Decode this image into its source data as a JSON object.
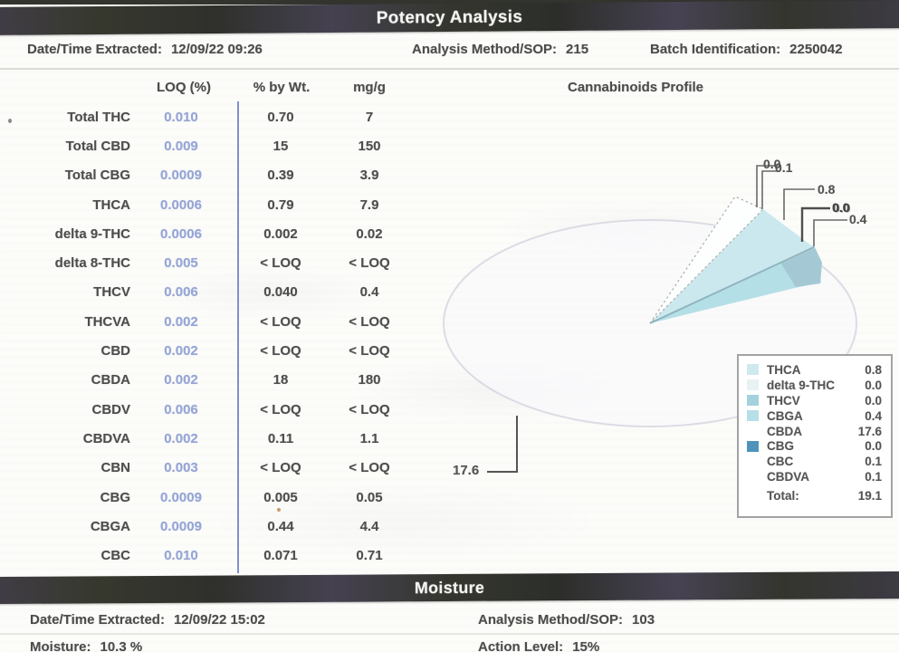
{
  "potency": {
    "title": "Potency Analysis",
    "extracted_label": "Date/Time Extracted:",
    "extracted_value": "12/09/22  09:26",
    "method_label": "Analysis Method/SOP:",
    "method_value": "215",
    "batch_label": "Batch Identification:",
    "batch_value": "2250042",
    "columns": {
      "loq": "LOQ (%)",
      "wt": "% by Wt.",
      "mgg": "mg/g"
    },
    "rows": [
      {
        "analyte": "Total THC",
        "loq": "0.010",
        "wt": "0.70",
        "mgg": "7"
      },
      {
        "analyte": "Total CBD",
        "loq": "0.009",
        "wt": "15",
        "mgg": "150"
      },
      {
        "analyte": "Total CBG",
        "loq": "0.0009",
        "wt": "0.39",
        "mgg": "3.9"
      },
      {
        "analyte": "THCA",
        "loq": "0.0006",
        "wt": "0.79",
        "mgg": "7.9"
      },
      {
        "analyte": "delta 9-THC",
        "loq": "0.0006",
        "wt": "0.002",
        "mgg": "0.02"
      },
      {
        "analyte": "delta 8-THC",
        "loq": "0.005",
        "wt": "< LOQ",
        "mgg": "< LOQ"
      },
      {
        "analyte": "THCV",
        "loq": "0.006",
        "wt": "0.040",
        "mgg": "0.4"
      },
      {
        "analyte": "THCVA",
        "loq": "0.002",
        "wt": "< LOQ",
        "mgg": "< LOQ"
      },
      {
        "analyte": "CBD",
        "loq": "0.002",
        "wt": "< LOQ",
        "mgg": "< LOQ"
      },
      {
        "analyte": "CBDA",
        "loq": "0.002",
        "wt": "18",
        "mgg": "180"
      },
      {
        "analyte": "CBDV",
        "loq": "0.006",
        "wt": "< LOQ",
        "mgg": "< LOQ"
      },
      {
        "analyte": "CBDVA",
        "loq": "0.002",
        "wt": "0.11",
        "mgg": "1.1"
      },
      {
        "analyte": "CBN",
        "loq": "0.003",
        "wt": "< LOQ",
        "mgg": "< LOQ"
      },
      {
        "analyte": "CBG",
        "loq": "0.0009",
        "wt": "0.005",
        "mgg": "0.05"
      },
      {
        "analyte": "CBGA",
        "loq": "0.0009",
        "wt": "0.44",
        "mgg": "4.4"
      },
      {
        "analyte": "CBC",
        "loq": "0.010",
        "wt": "0.071",
        "mgg": "0.71"
      }
    ]
  },
  "chart_data": {
    "type": "pie",
    "title": "Cannabinoids Profile",
    "units": "% by Wt.",
    "slices": [
      {
        "name": "THCA",
        "value": "0.8",
        "swatch": "#cfe9ee"
      },
      {
        "name": "delta 9-THC",
        "value": "0.0",
        "swatch": "#e9f2f2"
      },
      {
        "name": "THCV",
        "value": "0.0",
        "swatch": "#a3d2dc"
      },
      {
        "name": "CBGA",
        "value": "0.4",
        "swatch": "#b7dfe7"
      },
      {
        "name": "CBDA",
        "value": "17.6",
        "swatch": "#ffffff"
      },
      {
        "name": "CBG",
        "value": "0.0",
        "swatch": "#4f93ba"
      },
      {
        "name": "CBC",
        "value": "0.1",
        "swatch": "#ffffff"
      },
      {
        "name": "CBDVA",
        "value": "0.1",
        "swatch": "#ffffff"
      }
    ],
    "total_label": "Total:",
    "total_value": "19.1",
    "callouts": {
      "overlap_back": "0.0",
      "overlap_front": "0.1",
      "top": "0.8",
      "mid_bold": "0.0",
      "right": "0.4",
      "big": "17.6"
    },
    "legend_position": "right",
    "colors": {
      "loq_text": "#95a5d6",
      "divider": "#8191c9",
      "bar": "#38382f"
    }
  },
  "moisture": {
    "title": "Moisture",
    "extracted_label": "Date/Time Extracted:",
    "extracted_value": "12/09/22  15:02",
    "method_label": "Analysis Method/SOP:",
    "method_value": "103",
    "moisture_label": "Moisture:",
    "moisture_value": "10.3 %",
    "action_label": "Action Level:",
    "action_value": "15%"
  }
}
